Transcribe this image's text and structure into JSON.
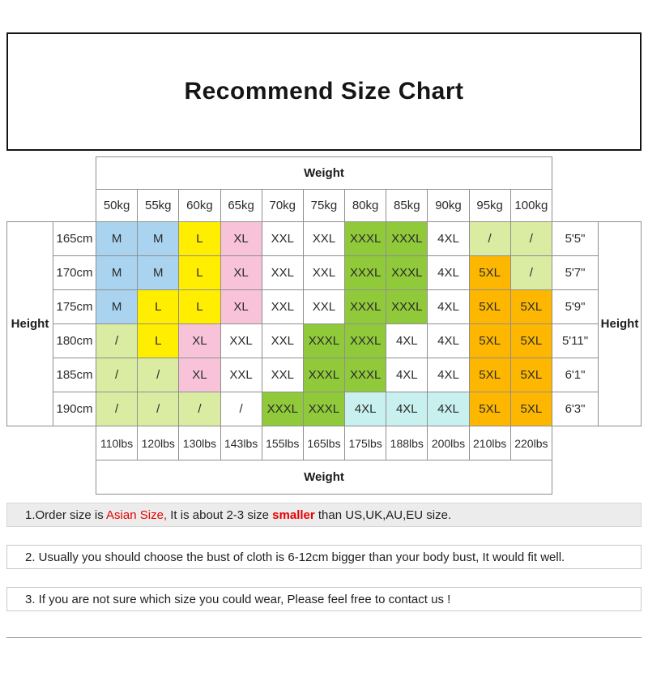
{
  "title": "Recommend Size Chart",
  "chart_data": {
    "type": "table",
    "title": "Recommend Size Chart",
    "weight_header": "Weight",
    "height_header": "Height",
    "weights_kg": [
      "50kg",
      "55kg",
      "60kg",
      "65kg",
      "70kg",
      "75kg",
      "80kg",
      "85kg",
      "90kg",
      "95kg",
      "100kg"
    ],
    "weights_lbs": [
      "110lbs",
      "120lbs",
      "130lbs",
      "143lbs",
      "155lbs",
      "165lbs",
      "175lbs",
      "188lbs",
      "200lbs",
      "210lbs",
      "220lbs"
    ],
    "size_colors": {
      "blue": "#a9d3ee",
      "yellow": "#ffee00",
      "pink": "#f8c3d8",
      "green": "#90ca3a",
      "lightgreen": "#d9eca2",
      "cyan": "#c7f0ee",
      "orange": "#fdb700",
      "white": "#ffffff"
    },
    "rows": [
      {
        "height_cm": "165cm",
        "height_ft": "5'5\"",
        "cells": [
          {
            "size": "M",
            "color": "blue"
          },
          {
            "size": "M",
            "color": "blue"
          },
          {
            "size": "L",
            "color": "yellow"
          },
          {
            "size": "XL",
            "color": "pink"
          },
          {
            "size": "XXL",
            "color": "white"
          },
          {
            "size": "XXL",
            "color": "white"
          },
          {
            "size": "XXXL",
            "color": "green"
          },
          {
            "size": "XXXL",
            "color": "green"
          },
          {
            "size": "4XL",
            "color": "white"
          },
          {
            "size": "/",
            "color": "lightgreen"
          },
          {
            "size": "/",
            "color": "lightgreen"
          }
        ]
      },
      {
        "height_cm": "170cm",
        "height_ft": "5'7\"",
        "cells": [
          {
            "size": "M",
            "color": "blue"
          },
          {
            "size": "M",
            "color": "blue"
          },
          {
            "size": "L",
            "color": "yellow"
          },
          {
            "size": "XL",
            "color": "pink"
          },
          {
            "size": "XXL",
            "color": "white"
          },
          {
            "size": "XXL",
            "color": "white"
          },
          {
            "size": "XXXL",
            "color": "green"
          },
          {
            "size": "XXXL",
            "color": "green"
          },
          {
            "size": "4XL",
            "color": "white"
          },
          {
            "size": "5XL",
            "color": "orange"
          },
          {
            "size": "/",
            "color": "lightgreen"
          }
        ]
      },
      {
        "height_cm": "175cm",
        "height_ft": "5'9\"",
        "cells": [
          {
            "size": "M",
            "color": "blue"
          },
          {
            "size": "L",
            "color": "yellow"
          },
          {
            "size": "L",
            "color": "yellow"
          },
          {
            "size": "XL",
            "color": "pink"
          },
          {
            "size": "XXL",
            "color": "white"
          },
          {
            "size": "XXL",
            "color": "white"
          },
          {
            "size": "XXXL",
            "color": "green"
          },
          {
            "size": "XXXL",
            "color": "green"
          },
          {
            "size": "4XL",
            "color": "white"
          },
          {
            "size": "5XL",
            "color": "orange"
          },
          {
            "size": "5XL",
            "color": "orange"
          }
        ]
      },
      {
        "height_cm": "180cm",
        "height_ft": "5'11\"",
        "cells": [
          {
            "size": "/",
            "color": "lightgreen"
          },
          {
            "size": "L",
            "color": "yellow"
          },
          {
            "size": "XL",
            "color": "pink"
          },
          {
            "size": "XXL",
            "color": "white"
          },
          {
            "size": "XXL",
            "color": "white"
          },
          {
            "size": "XXXL",
            "color": "green"
          },
          {
            "size": "XXXL",
            "color": "green"
          },
          {
            "size": "4XL",
            "color": "white"
          },
          {
            "size": "4XL",
            "color": "white"
          },
          {
            "size": "5XL",
            "color": "orange"
          },
          {
            "size": "5XL",
            "color": "orange"
          }
        ]
      },
      {
        "height_cm": "185cm",
        "height_ft": "6'1\"",
        "cells": [
          {
            "size": "/",
            "color": "lightgreen"
          },
          {
            "size": "/",
            "color": "lightgreen"
          },
          {
            "size": "XL",
            "color": "pink"
          },
          {
            "size": "XXL",
            "color": "white"
          },
          {
            "size": "XXL",
            "color": "white"
          },
          {
            "size": "XXXL",
            "color": "green"
          },
          {
            "size": "XXXL",
            "color": "green"
          },
          {
            "size": "4XL",
            "color": "white"
          },
          {
            "size": "4XL",
            "color": "white"
          },
          {
            "size": "5XL",
            "color": "orange"
          },
          {
            "size": "5XL",
            "color": "orange"
          }
        ]
      },
      {
        "height_cm": "190cm",
        "height_ft": "6'3\"",
        "cells": [
          {
            "size": "/",
            "color": "lightgreen"
          },
          {
            "size": "/",
            "color": "lightgreen"
          },
          {
            "size": "/",
            "color": "lightgreen"
          },
          {
            "size": "/",
            "color": "white"
          },
          {
            "size": "XXXL",
            "color": "green"
          },
          {
            "size": "XXXL",
            "color": "green"
          },
          {
            "size": "4XL",
            "color": "cyan"
          },
          {
            "size": "4XL",
            "color": "cyan"
          },
          {
            "size": "4XL",
            "color": "cyan"
          },
          {
            "size": "5XL",
            "color": "orange"
          },
          {
            "size": "5XL",
            "color": "orange"
          }
        ]
      }
    ]
  },
  "notes": [
    {
      "bg": "gray",
      "parts": [
        {
          "text": "1.Order size is ",
          "red": false,
          "bold": false
        },
        {
          "text": "Asian Size,",
          "red": true,
          "bold": false
        },
        {
          "text": " It is about 2-3 size ",
          "red": false,
          "bold": false
        },
        {
          "text": "smaller",
          "red": true,
          "bold": true
        },
        {
          "text": " than US,UK,AU,EU size.",
          "red": false,
          "bold": false
        }
      ]
    },
    {
      "bg": "white",
      "parts": [
        {
          "text": "2. Usually you should choose the bust of cloth is 6-12cm bigger than your body bust, It would fit well.",
          "red": false,
          "bold": false
        }
      ]
    },
    {
      "bg": "white",
      "parts": [
        {
          "text": "3. If you are not sure which size you could wear, Please feel free to contact us !",
          "red": false,
          "bold": false
        }
      ]
    }
  ]
}
